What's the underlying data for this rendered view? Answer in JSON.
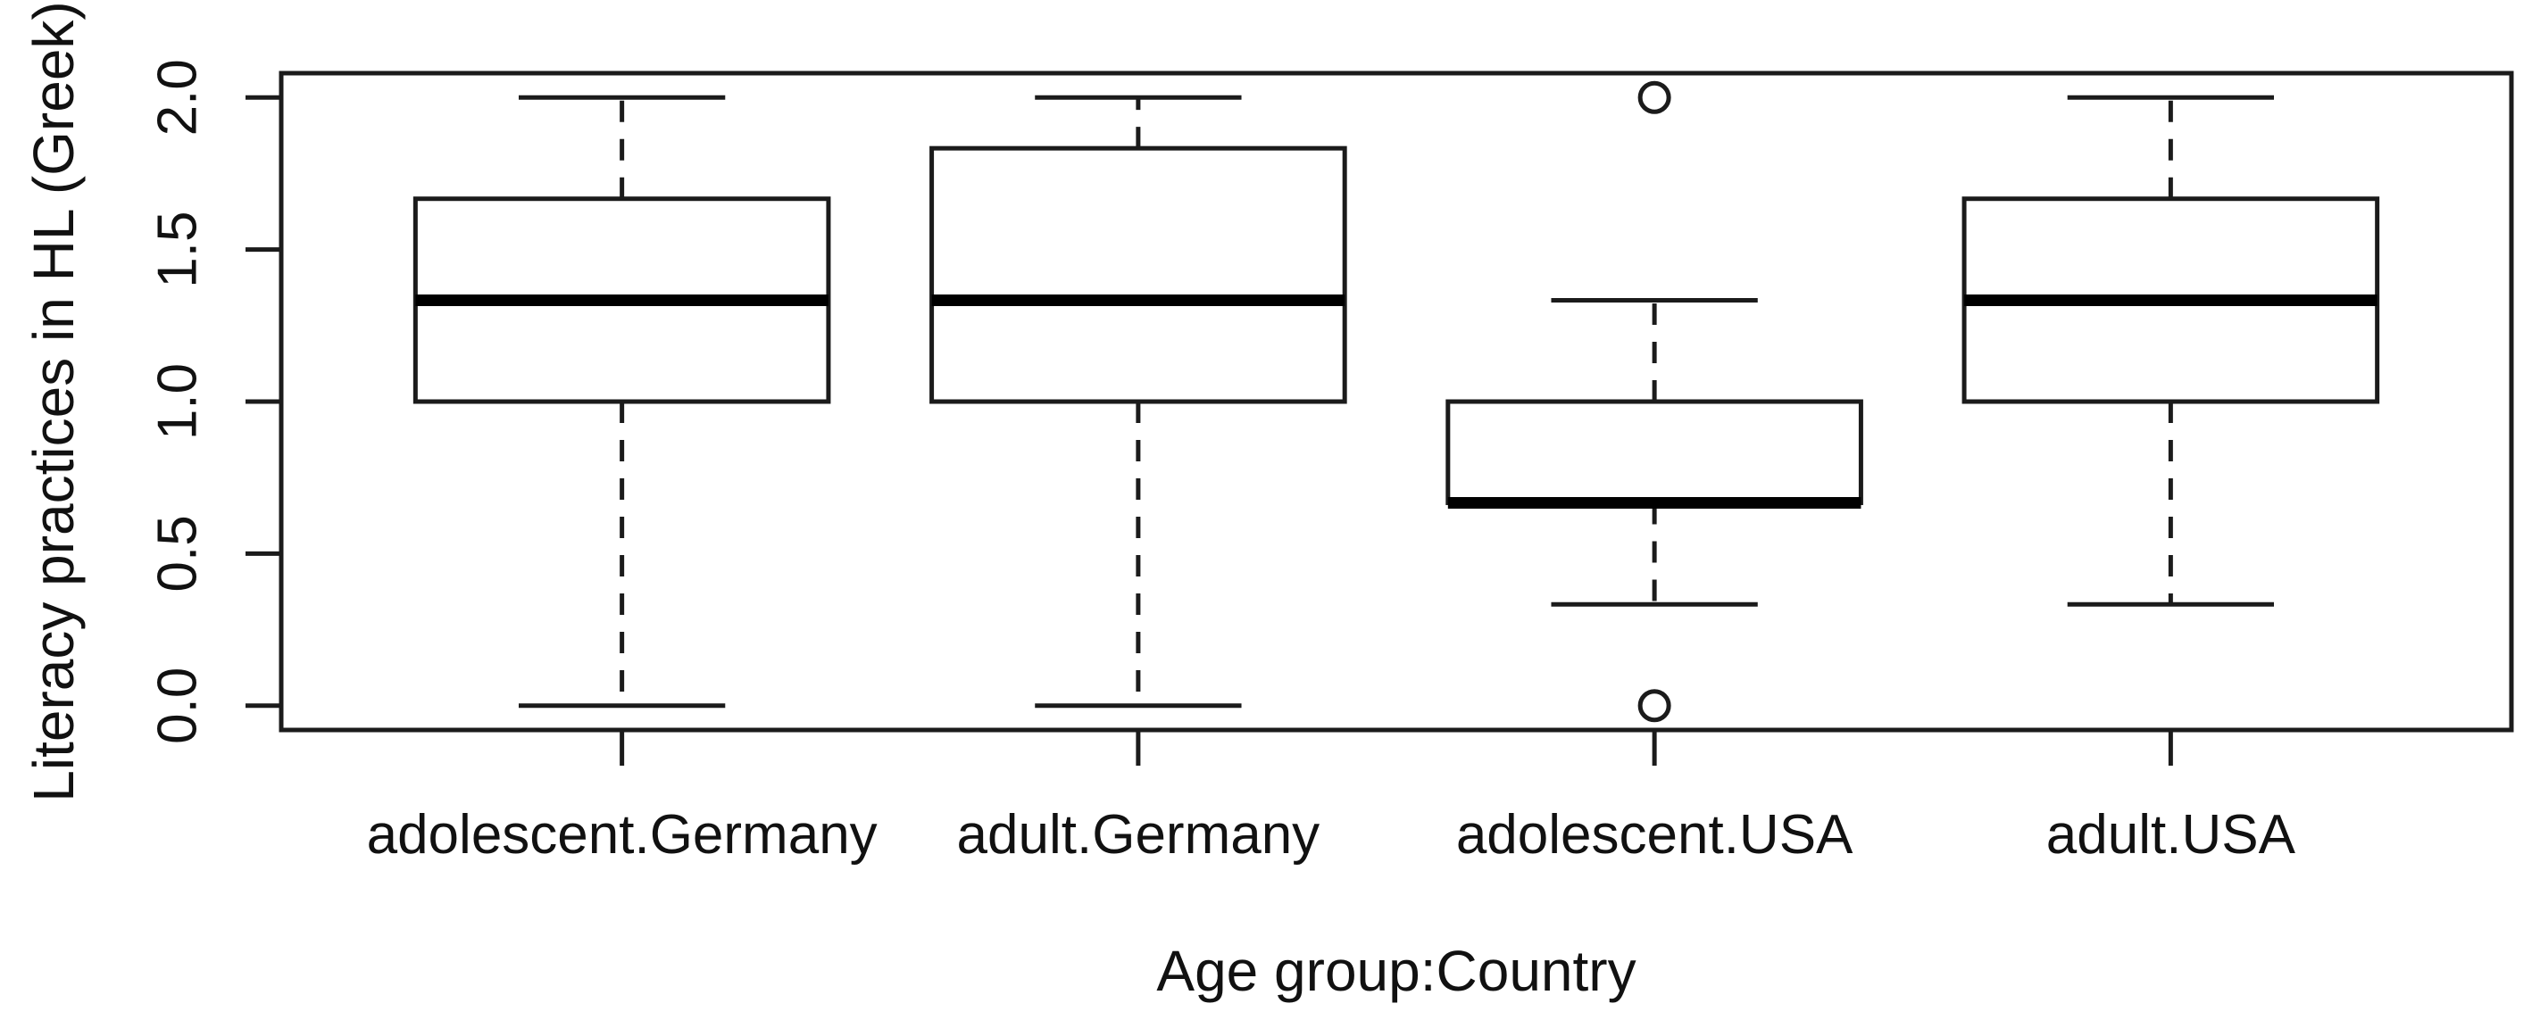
{
  "chart_data": {
    "type": "boxplot",
    "title": "",
    "xlabel": "Age group:Country",
    "ylabel": "Literacy practices in HL (Greek)",
    "categories": [
      "adolescent.Germany",
      "adult.Germany",
      "adolescent.USA",
      "adult.USA"
    ],
    "positions": [
      1,
      2,
      3,
      4
    ],
    "xlim": [
      0.34,
      4.66
    ],
    "ylim": [
      -0.08,
      2.08
    ],
    "yticks": {
      "values": [
        0.0,
        0.5,
        1.0,
        1.5,
        2.0
      ],
      "labels": [
        "0.0",
        "0.5",
        "1.0",
        "1.5",
        "2.0"
      ]
    },
    "grid": false,
    "legend": null,
    "box_width": 0.8,
    "cap_width": 0.4,
    "series": [
      {
        "name": "adolescent.Germany",
        "whisker_low": 0,
        "q1": 1,
        "median": 1.333,
        "q3": 1.667,
        "whisker_high": 2,
        "outliers": []
      },
      {
        "name": "adult.Germany",
        "whisker_low": 0,
        "q1": 1,
        "median": 1.333,
        "q3": 1.833,
        "whisker_high": 2,
        "outliers": []
      },
      {
        "name": "adolescent.USA",
        "whisker_low": 0.333,
        "q1": 0.667,
        "median": 0.667,
        "q3": 1,
        "whisker_high": 1.333,
        "outliers": [
          0,
          2
        ]
      },
      {
        "name": "adult.USA",
        "whisker_low": 0.333,
        "q1": 1,
        "median": 1.333,
        "q3": 1.667,
        "whisker_high": 2,
        "outliers": []
      }
    ],
    "colors": {
      "line": "#1b1b1b",
      "median": "#000000",
      "box_fill": "#ffffff",
      "background": "#ffffff",
      "text": "#111111"
    }
  }
}
